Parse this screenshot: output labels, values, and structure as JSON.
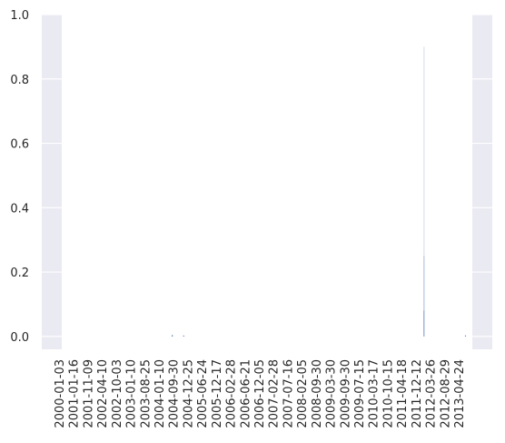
{
  "chart_data": {
    "type": "bar",
    "title": "",
    "xlabel": "",
    "ylabel": "",
    "ylim": [
      -0.04,
      1.0
    ],
    "yticks": [
      0.0,
      0.2,
      0.4,
      0.6,
      0.8,
      1.0
    ],
    "ytick_labels": [
      "0.0",
      "0.2",
      "0.4",
      "0.6",
      "0.8",
      "1.0"
    ],
    "grid": true,
    "legend": "none",
    "bar_color": "#4c72b0",
    "bar_highlight_colors": [
      "#a9bcd9",
      "#dfe6f1"
    ],
    "background_color": "#eaeaf2",
    "grid_color": "#ffffff",
    "xlim": [
      "2000-01-03",
      "2013-07-15"
    ],
    "xtick_labels": [
      "2000-01-03",
      "2001-01-16",
      "2001-11-09",
      "2002-04-10",
      "2002-10-03",
      "2003-01-10",
      "2003-08-25",
      "2004-01-10",
      "2004-09-30",
      "2004-12-25",
      "2005-06-24",
      "2005-12-17",
      "2006-02-28",
      "2006-06-21",
      "2006-12-05",
      "2007-02-28",
      "2007-07-16",
      "2008-02-05",
      "2008-09-30",
      "2009-03-30",
      "2009-09-30",
      "2009-07-15",
      "2010-03-17",
      "2010-10-15",
      "2011-04-18",
      "2011-12-12",
      "2012-03-26",
      "2012-08-29",
      "2013-04-24"
    ],
    "bars": [
      {
        "x": "2003-08-25",
        "value": 0.004
      },
      {
        "x": "2004-01-10",
        "value": 0.002
      },
      {
        "x": "2011-12-12",
        "value": 0.9
      },
      {
        "x": "2013-04-24",
        "value": 0.003
      }
    ]
  }
}
